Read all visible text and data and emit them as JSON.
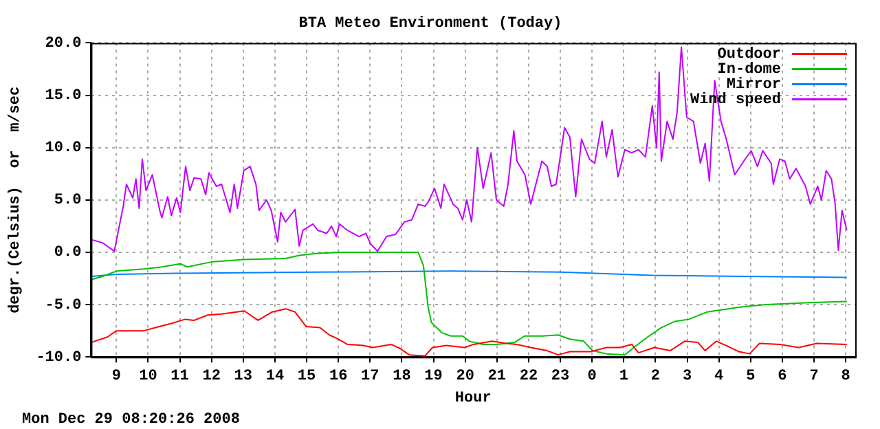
{
  "chart_data": {
    "type": "line",
    "title": "BTA Meteo Environment (Today)",
    "xlabel": "Hour",
    "ylabel": "degr.(Celsius)  or  m/sec",
    "annotations": [
      "Mon Dec 29 08:20:26 2008"
    ],
    "xlim": [
      "2008-12-28T08:12",
      "2008-12-29T08:18"
    ],
    "xticks": [
      {
        "value": "2008-12-28T09:00",
        "label": "9"
      },
      {
        "value": "2008-12-28T10:00",
        "label": "10"
      },
      {
        "value": "2008-12-28T11:00",
        "label": "11"
      },
      {
        "value": "2008-12-28T12:00",
        "label": "12"
      },
      {
        "value": "2008-12-28T13:00",
        "label": "13"
      },
      {
        "value": "2008-12-28T14:00",
        "label": "14"
      },
      {
        "value": "2008-12-28T15:00",
        "label": "15"
      },
      {
        "value": "2008-12-28T16:00",
        "label": "16"
      },
      {
        "value": "2008-12-28T17:00",
        "label": "17"
      },
      {
        "value": "2008-12-28T18:00",
        "label": "18"
      },
      {
        "value": "2008-12-28T19:00",
        "label": "19"
      },
      {
        "value": "2008-12-28T20:00",
        "label": "20"
      },
      {
        "value": "2008-12-28T21:00",
        "label": "21"
      },
      {
        "value": "2008-12-28T22:00",
        "label": "22"
      },
      {
        "value": "2008-12-28T23:00",
        "label": "23"
      },
      {
        "value": "2008-12-29T00:00",
        "label": "0"
      },
      {
        "value": "2008-12-29T01:00",
        "label": "1"
      },
      {
        "value": "2008-12-29T02:00",
        "label": "2"
      },
      {
        "value": "2008-12-29T03:00",
        "label": "3"
      },
      {
        "value": "2008-12-29T04:00",
        "label": "4"
      },
      {
        "value": "2008-12-29T05:00",
        "label": "5"
      },
      {
        "value": "2008-12-29T06:00",
        "label": "6"
      },
      {
        "value": "2008-12-29T07:00",
        "label": "7"
      },
      {
        "value": "2008-12-29T08:00",
        "label": "8"
      }
    ],
    "ylim": [
      -10,
      20
    ],
    "yticks": [
      {
        "value": -10,
        "label": "-10.0"
      },
      {
        "value": -5,
        "label": "-5.0"
      },
      {
        "value": 0,
        "label": "0.0"
      },
      {
        "value": 5,
        "label": "5.0"
      },
      {
        "value": 10,
        "label": "10.0"
      },
      {
        "value": 15,
        "label": "15.0"
      },
      {
        "value": 20,
        "label": "20.0"
      }
    ],
    "grid": true,
    "legend": "top right",
    "marker": "none",
    "line_style": "solid",
    "series": [
      {
        "name": "Outdoor",
        "color": "#ff0000",
        "x": [
          "2008-12-28T08:13",
          "2008-12-28T08:43",
          "2008-12-28T09:00",
          "2008-12-28T09:52",
          "2008-12-28T10:14",
          "2008-12-28T10:44",
          "2008-12-28T11:10",
          "2008-12-28T11:27",
          "2008-12-28T11:53",
          "2008-12-28T12:19",
          "2008-12-28T13:02",
          "2008-12-28T13:28",
          "2008-12-28T13:55",
          "2008-12-28T14:20",
          "2008-12-28T14:38",
          "2008-12-28T14:59",
          "2008-12-28T15:25",
          "2008-12-28T15:43",
          "2008-12-28T16:00",
          "2008-12-28T16:17",
          "2008-12-28T16:47",
          "2008-12-28T17:05",
          "2008-12-28T17:40",
          "2008-12-28T17:57",
          "2008-12-28T18:14",
          "2008-12-28T18:44",
          "2008-12-28T18:58",
          "2008-12-28T19:24",
          "2008-12-28T19:59",
          "2008-12-28T20:16",
          "2008-12-28T20:51",
          "2008-12-28T21:17",
          "2008-12-28T21:38",
          "2008-12-28T22:04",
          "2008-12-28T22:35",
          "2008-12-28T22:56",
          "2008-12-28T23:18",
          "2008-12-28T23:57",
          "2008-12-29T00:27",
          "2008-12-29T00:53",
          "2008-12-29T01:15",
          "2008-12-29T01:28",
          "2008-12-29T01:58",
          "2008-12-29T02:28",
          "2008-12-29T02:55",
          "2008-12-29T03:20",
          "2008-12-29T03:34",
          "2008-12-29T03:55",
          "2008-12-29T04:13",
          "2008-12-29T04:38",
          "2008-12-29T04:58",
          "2008-12-29T05:17",
          "2008-12-29T05:56",
          "2008-12-29T06:31",
          "2008-12-29T07:05",
          "2008-12-29T08:02"
        ],
        "values": [
          -8.6,
          -8.1,
          -7.5,
          -7.5,
          -7.2,
          -6.8,
          -6.4,
          -6.5,
          -6.0,
          -5.9,
          -5.6,
          -6.5,
          -5.7,
          -5.4,
          -5.7,
          -7.1,
          -7.2,
          -7.9,
          -8.3,
          -8.8,
          -8.9,
          -9.1,
          -8.8,
          -9.2,
          -9.8,
          -9.9,
          -9.1,
          -8.9,
          -9.1,
          -8.8,
          -8.5,
          -8.7,
          -8.8,
          -9.1,
          -9.4,
          -9.8,
          -9.5,
          -9.5,
          -9.1,
          -9.1,
          -8.8,
          -9.6,
          -9.1,
          -9.4,
          -8.5,
          -8.6,
          -9.4,
          -8.5,
          -8.9,
          -9.5,
          -9.7,
          -8.7,
          -8.8,
          -9.1,
          -8.7,
          -8.8
        ]
      },
      {
        "name": "In-dome",
        "color": "#00c000",
        "x": [
          "2008-12-28T08:13",
          "2008-12-28T08:34",
          "2008-12-28T09:00",
          "2008-12-28T09:52",
          "2008-12-28T10:26",
          "2008-12-28T11:01",
          "2008-12-28T11:14",
          "2008-12-28T12:02",
          "2008-12-28T13:02",
          "2008-12-28T14:20",
          "2008-12-28T14:46",
          "2008-12-28T15:21",
          "2008-12-28T16:04",
          "2008-12-28T16:47",
          "2008-12-28T18:31",
          "2008-12-28T18:41",
          "2008-12-28T18:50",
          "2008-12-28T18:56",
          "2008-12-28T19:16",
          "2008-12-28T19:33",
          "2008-12-28T19:55",
          "2008-12-28T20:08",
          "2008-12-28T20:34",
          "2008-12-28T20:59",
          "2008-12-28T21:34",
          "2008-12-28T21:52",
          "2008-12-28T22:26",
          "2008-12-28T22:56",
          "2008-12-28T23:18",
          "2008-12-28T23:44",
          "2008-12-29T00:01",
          "2008-12-29T00:27",
          "2008-12-29T01:02",
          "2008-12-29T01:19",
          "2008-12-29T01:45",
          "2008-12-29T02:11",
          "2008-12-29T02:37",
          "2008-12-29T03:03",
          "2008-12-29T03:38",
          "2008-12-29T04:04",
          "2008-12-29T04:47",
          "2008-12-29T05:30",
          "2008-12-29T06:14",
          "2008-12-29T06:57",
          "2008-12-29T08:02"
        ],
        "values": [
          -2.6,
          -2.3,
          -1.8,
          -1.6,
          -1.4,
          -1.1,
          -1.4,
          -0.9,
          -0.7,
          -0.6,
          -0.3,
          -0.1,
          0.0,
          0.0,
          0.0,
          -1.3,
          -5.3,
          -6.7,
          -7.7,
          -8.0,
          -8.0,
          -8.5,
          -8.8,
          -8.8,
          -8.6,
          -8.0,
          -8.0,
          -7.9,
          -8.3,
          -8.5,
          -9.4,
          -9.7,
          -9.8,
          -9.1,
          -8.1,
          -7.2,
          -6.6,
          -6.4,
          -5.7,
          -5.5,
          -5.2,
          -5.0,
          -4.9,
          -4.8,
          -4.7
        ]
      },
      {
        "name": "Mirror",
        "color": "#0080ff",
        "x": [
          "2008-12-28T08:13",
          "2008-12-28T09:00",
          "2008-12-28T11:01",
          "2008-12-28T15:21",
          "2008-12-28T19:32",
          "2008-12-28T23:01",
          "2008-12-29T01:54",
          "2008-12-29T04:47",
          "2008-12-29T08:02"
        ],
        "values": [
          -2.3,
          -2.1,
          -2.0,
          -1.9,
          -1.8,
          -1.9,
          -2.2,
          -2.3,
          -2.4
        ]
      },
      {
        "name": "Wind speed",
        "color": "#c000ff",
        "x": [
          "2008-12-28T08:13",
          "2008-12-28T08:34",
          "2008-12-28T08:56",
          "2008-12-28T09:13",
          "2008-12-28T09:19",
          "2008-12-28T09:31",
          "2008-12-28T09:37",
          "2008-12-28T09:43",
          "2008-12-28T09:49",
          "2008-12-28T09:56",
          "2008-12-28T10:08",
          "2008-12-28T10:22",
          "2008-12-28T10:26",
          "2008-12-28T10:37",
          "2008-12-28T10:44",
          "2008-12-28T10:54",
          "2008-12-28T11:01",
          "2008-12-28T11:11",
          "2008-12-28T11:19",
          "2008-12-28T11:27",
          "2008-12-28T11:40",
          "2008-12-28T11:49",
          "2008-12-28T11:55",
          "2008-12-28T12:09",
          "2008-12-28T12:19",
          "2008-12-28T12:35",
          "2008-12-28T12:43",
          "2008-12-28T12:49",
          "2008-12-28T13:01",
          "2008-12-28T13:13",
          "2008-12-28T13:24",
          "2008-12-28T13:30",
          "2008-12-28T13:44",
          "2008-12-28T13:53",
          "2008-12-28T14:05",
          "2008-12-28T14:11",
          "2008-12-28T14:20",
          "2008-12-28T14:38",
          "2008-12-28T14:46",
          "2008-12-28T14:53",
          "2008-12-28T15:12",
          "2008-12-28T15:21",
          "2008-12-28T15:38",
          "2008-12-28T15:47",
          "2008-12-28T15:56",
          "2008-12-28T16:02",
          "2008-12-28T16:17",
          "2008-12-28T16:39",
          "2008-12-28T16:52",
          "2008-12-28T17:01",
          "2008-12-28T17:14",
          "2008-12-28T17:31",
          "2008-12-28T17:48",
          "2008-12-28T18:05",
          "2008-12-28T18:19",
          "2008-12-28T18:31",
          "2008-12-28T18:44",
          "2008-12-28T18:50",
          "2008-12-28T19:02",
          "2008-12-28T19:14",
          "2008-12-28T19:20",
          "2008-12-28T19:37",
          "2008-12-28T19:46",
          "2008-12-28T19:55",
          "2008-12-28T20:03",
          "2008-12-28T20:12",
          "2008-12-28T20:23",
          "2008-12-28T20:34",
          "2008-12-28T20:49",
          "2008-12-28T20:59",
          "2008-12-28T21:13",
          "2008-12-28T21:21",
          "2008-12-28T21:32",
          "2008-12-28T21:38",
          "2008-12-28T21:53",
          "2008-12-28T22:04",
          "2008-12-28T22:25",
          "2008-12-28T22:35",
          "2008-12-28T22:43",
          "2008-12-28T22:52",
          "2008-12-28T23:08",
          "2008-12-28T23:18",
          "2008-12-28T23:29",
          "2008-12-28T23:40",
          "2008-12-28T23:55",
          "2008-12-29T00:05",
          "2008-12-29T00:19",
          "2008-12-29T00:27",
          "2008-12-29T00:38",
          "2008-12-29T00:49",
          "2008-12-29T01:02",
          "2008-12-29T01:15",
          "2008-12-29T01:28",
          "2008-12-29T01:41",
          "2008-12-29T01:54",
          "2008-12-29T02:02",
          "2008-12-29T02:07",
          "2008-12-29T02:11",
          "2008-12-29T02:22",
          "2008-12-29T02:33",
          "2008-12-29T02:41",
          "2008-12-29T02:49",
          "2008-12-29T02:59",
          "2008-12-29T03:12",
          "2008-12-29T03:25",
          "2008-12-29T03:34",
          "2008-12-29T03:42",
          "2008-12-29T03:52",
          "2008-12-29T04:04",
          "2008-12-29T04:14",
          "2008-12-29T04:30",
          "2008-12-29T04:47",
          "2008-12-29T05:01",
          "2008-12-29T05:13",
          "2008-12-29T05:23",
          "2008-12-29T05:39",
          "2008-12-29T05:43",
          "2008-12-29T05:55",
          "2008-12-29T06:05",
          "2008-12-29T06:14",
          "2008-12-29T06:26",
          "2008-12-29T06:44",
          "2008-12-29T06:53",
          "2008-12-29T07:07",
          "2008-12-29T07:14",
          "2008-12-29T07:23",
          "2008-12-29T07:33",
          "2008-12-29T07:40",
          "2008-12-29T07:46",
          "2008-12-29T07:53",
          "2008-12-29T08:02"
        ],
        "values": [
          1.2,
          0.9,
          0.1,
          4.4,
          6.5,
          5.2,
          7.0,
          4.2,
          8.9,
          5.9,
          7.4,
          4.0,
          3.3,
          5.3,
          3.5,
          5.2,
          3.8,
          8.2,
          5.9,
          7.1,
          7.0,
          5.5,
          7.6,
          6.3,
          6.5,
          3.8,
          6.5,
          4.2,
          7.8,
          8.2,
          6.5,
          4.0,
          5.0,
          4.0,
          1.0,
          3.8,
          2.9,
          4.1,
          0.6,
          2.1,
          2.7,
          2.1,
          1.8,
          2.5,
          1.5,
          2.7,
          2.1,
          1.5,
          1.8,
          0.8,
          0.1,
          1.5,
          1.7,
          2.9,
          3.1,
          4.6,
          4.4,
          4.8,
          6.1,
          4.2,
          6.5,
          4.6,
          4.2,
          3.1,
          5.0,
          2.9,
          10.0,
          6.1,
          9.5,
          5.0,
          4.4,
          6.5,
          11.6,
          8.7,
          7.4,
          4.6,
          8.7,
          8.2,
          6.3,
          6.5,
          11.9,
          11.0,
          5.3,
          10.8,
          8.9,
          8.5,
          12.5,
          9.1,
          11.7,
          7.2,
          9.8,
          9.5,
          9.8,
          9.1,
          14.0,
          10.0,
          17.2,
          8.7,
          12.5,
          10.8,
          13.4,
          19.6,
          12.9,
          12.5,
          8.5,
          10.4,
          6.8,
          16.4,
          12.5,
          10.8,
          7.4,
          8.7,
          9.7,
          8.2,
          9.7,
          8.5,
          6.5,
          8.9,
          8.7,
          7.0,
          8.0,
          6.3,
          4.6,
          6.3,
          5.0,
          7.8,
          7.0,
          4.6,
          0.2,
          4.0,
          2.1
        ]
      }
    ]
  }
}
